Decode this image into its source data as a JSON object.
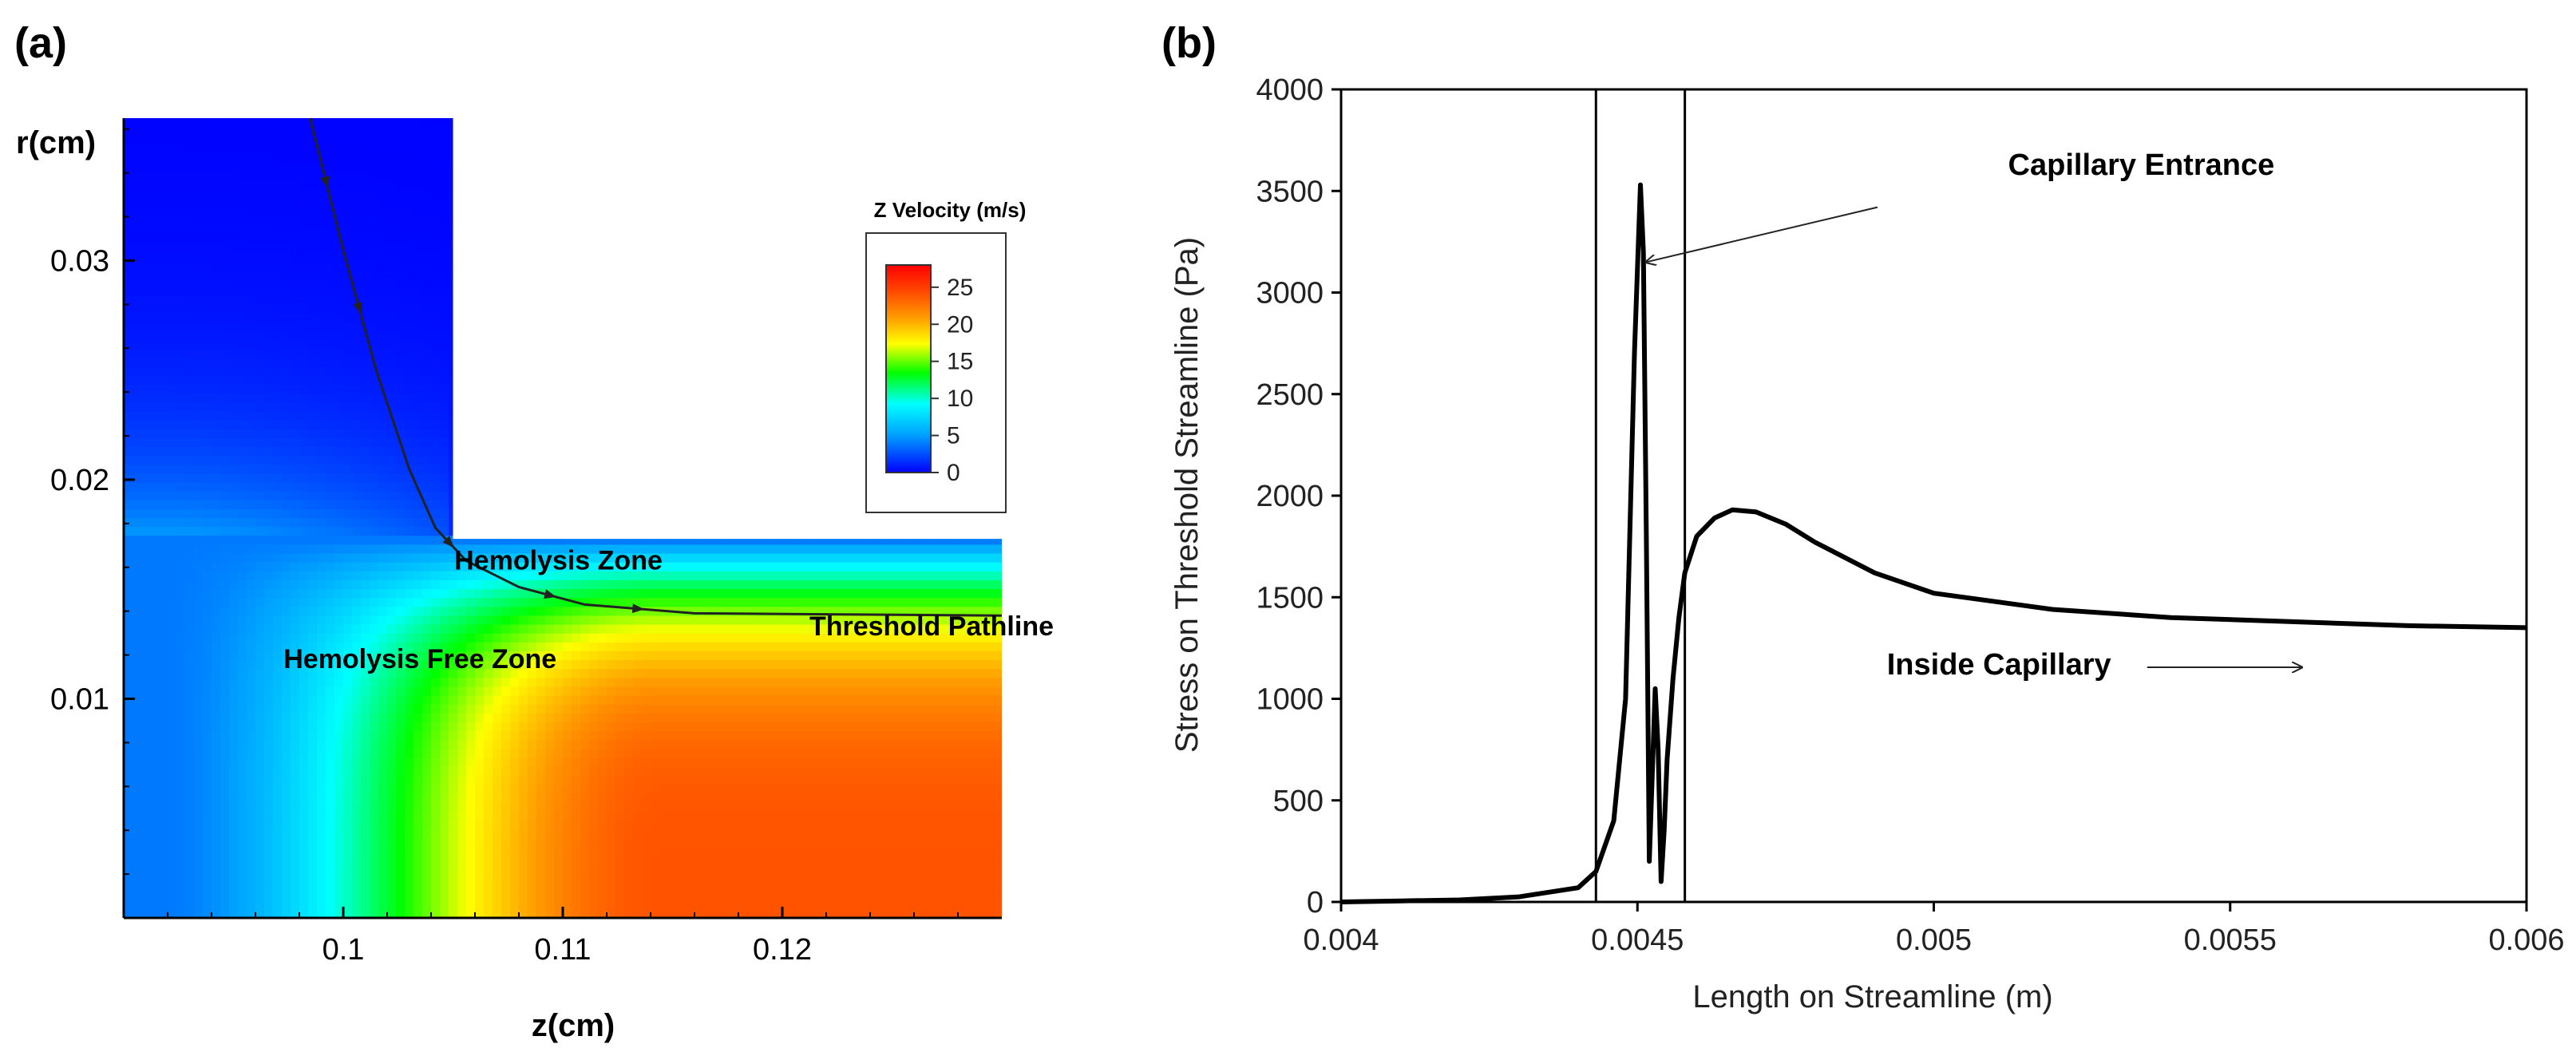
{
  "chart_data": [
    {
      "type": "heatmap",
      "panel_label": "(a)",
      "title": "",
      "xlabel": "z(cm)",
      "ylabel": "r(cm)",
      "xlim": [
        0.09,
        0.13
      ],
      "ylim": [
        0.0,
        0.0365
      ],
      "x_ticks": [
        0.1,
        0.11,
        0.12
      ],
      "x_tick_labels": [
        "0.1",
        "0.11",
        "0.12"
      ],
      "y_ticks": [
        0.01,
        0.02,
        0.03
      ],
      "y_tick_labels": [
        "0.01",
        "0.02",
        "0.03"
      ],
      "geometry": {
        "step_z": 0.105,
        "reservoir_r_max": 0.0365,
        "capillary_r_max": 0.0173
      },
      "colorbar": {
        "title": "Z Velocity (m/s)",
        "min": 0,
        "max": 28,
        "ticks": [
          0,
          5,
          10,
          15,
          20,
          25
        ],
        "tick_labels": [
          "0",
          "5",
          "10",
          "15",
          "20",
          "25"
        ]
      },
      "pathline": {
        "name": "Threshold Pathline",
        "points": [
          [
            0.0985,
            0.0365
          ],
          [
            0.1,
            0.0305
          ],
          [
            0.1015,
            0.025
          ],
          [
            0.103,
            0.0205
          ],
          [
            0.1042,
            0.0178
          ],
          [
            0.1056,
            0.0163
          ],
          [
            0.108,
            0.0151
          ],
          [
            0.111,
            0.0143
          ],
          [
            0.116,
            0.0139
          ],
          [
            0.13,
            0.0138
          ]
        ]
      },
      "annotations": [
        {
          "text": "Hemolysis Zone",
          "z": 0.1098,
          "r": 0.0159
        },
        {
          "text": "Threshold Pathline",
          "z": 0.1268,
          "r": 0.0129
        },
        {
          "text": "Hemolysis Free Zone",
          "z": 0.1035,
          "r": 0.0114
        }
      ]
    },
    {
      "type": "line",
      "panel_label": "(b)",
      "title": "",
      "xlabel": "Length on Streamline (m)",
      "ylabel": "Stress on Threshold Streamline (Pa)",
      "xlim": [
        0.004,
        0.006
      ],
      "ylim": [
        0,
        4000
      ],
      "x_ticks": [
        0.004,
        0.0045,
        0.005,
        0.0055,
        0.006
      ],
      "x_tick_labels": [
        "0.004",
        "0.0045",
        "0.005",
        "0.0055",
        "0.006"
      ],
      "y_ticks": [
        0,
        500,
        1000,
        1500,
        2000,
        2500,
        3000,
        3500,
        4000
      ],
      "y_tick_labels": [
        "0",
        "500",
        "1000",
        "1500",
        "2000",
        "2500",
        "3000",
        "3500",
        "4000"
      ],
      "vertical_lines": [
        0.00443,
        0.00458
      ],
      "series": [
        {
          "name": "Stress",
          "x": [
            0.004,
            0.0041,
            0.0042,
            0.0043,
            0.0044,
            0.00443,
            0.00446,
            0.00448,
            0.004495,
            0.004505,
            0.00451,
            0.004515,
            0.00452,
            0.00453,
            0.004535,
            0.00454,
            0.004545,
            0.00455,
            0.00456,
            0.00457,
            0.00458,
            0.0046,
            0.00463,
            0.00466,
            0.0047,
            0.00475,
            0.0048,
            0.0049,
            0.005,
            0.0052,
            0.0054,
            0.0056,
            0.0058,
            0.006
          ],
          "y": [
            0,
            5,
            10,
            25,
            70,
            150,
            400,
            1000,
            2700,
            3530,
            3200,
            1800,
            200,
            1050,
            750,
            100,
            350,
            700,
            1100,
            1400,
            1620,
            1800,
            1890,
            1930,
            1920,
            1860,
            1770,
            1620,
            1520,
            1440,
            1400,
            1380,
            1360,
            1350
          ]
        }
      ],
      "annotations": [
        {
          "text": "Capillary Entrance",
          "x": 0.00535,
          "y": 3580
        },
        {
          "text": "Inside Capillary",
          "x": 0.00511,
          "y": 1120
        }
      ]
    }
  ]
}
